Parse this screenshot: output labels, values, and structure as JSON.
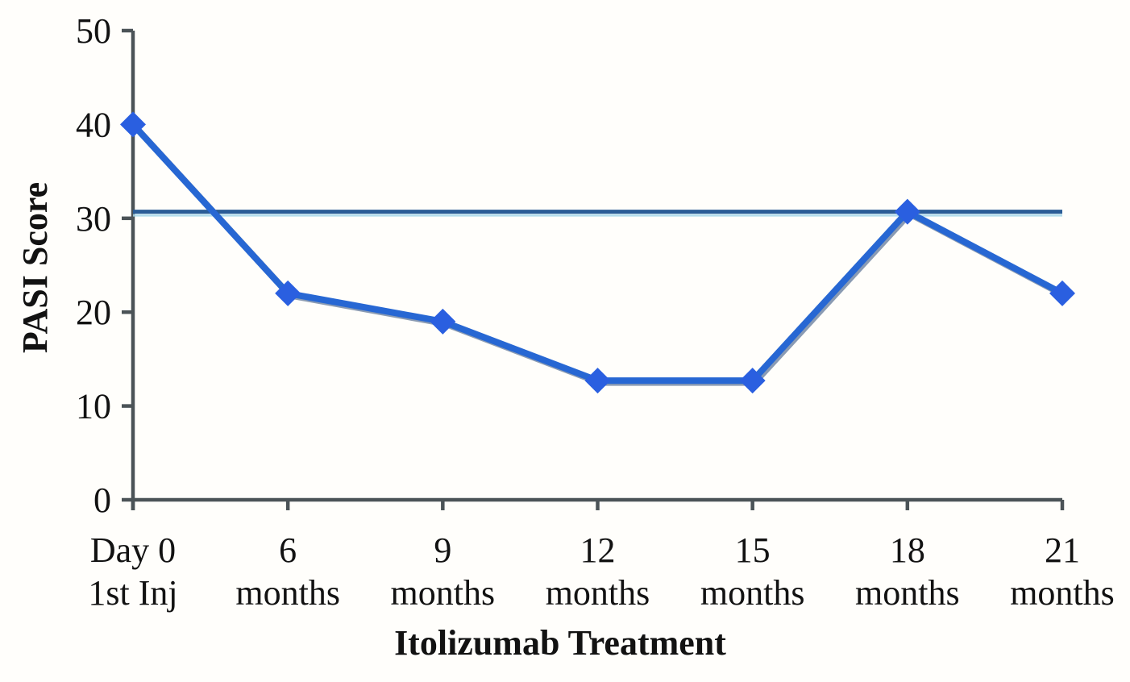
{
  "figure": {
    "background_color": "#fffefb",
    "axis_color": "#4b5357",
    "text_color": "#121212"
  },
  "chart_data": {
    "type": "line",
    "title": "",
    "xlabel": "Itolizumab Treatment",
    "ylabel": "PASI Score",
    "categories": [
      {
        "line1": "Day 0",
        "line2": "1st Inj"
      },
      {
        "line1": "6",
        "line2": "months"
      },
      {
        "line1": "9",
        "line2": "months"
      },
      {
        "line1": "12",
        "line2": "months"
      },
      {
        "line1": "15",
        "line2": "months"
      },
      {
        "line1": "18",
        "line2": "months"
      },
      {
        "line1": "21",
        "line2": "months"
      }
    ],
    "values": [
      40,
      22,
      19,
      12.7,
      12.7,
      30.7,
      22
    ],
    "marker": "diamond",
    "line_color": "#2767d3",
    "marker_color": "#2a5fe0",
    "line_shadow_color": "#16386b",
    "reference_line": {
      "value": 30.7,
      "color": "#2a5c96",
      "shadow_color": "#a8d8ea"
    },
    "ylim": [
      0,
      50
    ],
    "yticks": [
      0,
      10,
      20,
      30,
      40,
      50
    ],
    "grid": false,
    "legend": false
  }
}
